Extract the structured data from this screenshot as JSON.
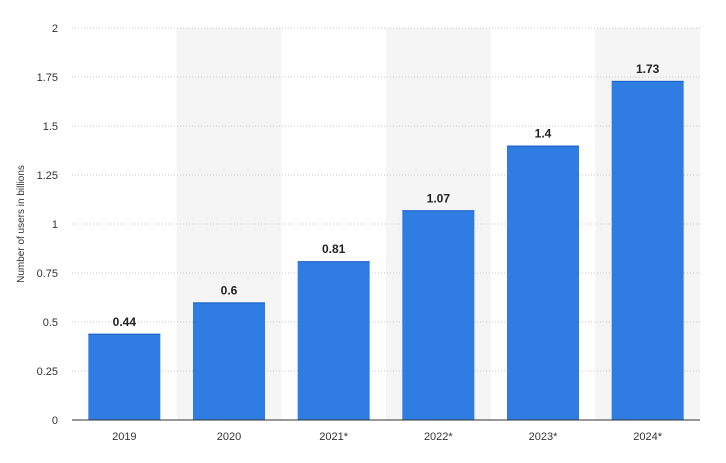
{
  "chart_data": {
    "type": "bar",
    "categories": [
      "2019",
      "2020",
      "2021*",
      "2022*",
      "2023*",
      "2024*"
    ],
    "values": [
      0.44,
      0.6,
      0.81,
      1.07,
      1.4,
      1.73
    ],
    "data_labels": [
      "0.44",
      "0.6",
      "0.81",
      "1.07",
      "1.4",
      "1.73"
    ],
    "title": "",
    "xlabel": "",
    "ylabel": "Number of users in billions",
    "ylim": [
      0,
      2
    ],
    "yticks": [
      0,
      0.25,
      0.5,
      0.75,
      1,
      1.25,
      1.5,
      1.75,
      2
    ],
    "ytick_labels": [
      "0",
      "0.25",
      "0.5",
      "0.75",
      "1",
      "1.25",
      "1.5",
      "1.75",
      "2"
    ],
    "grid": true,
    "grid_style": "dotted",
    "alternating_band_color": "#f5f5f5",
    "bar_color": "#2f7ce3",
    "bar_edge_color": "#1b5fc7",
    "legend": "none"
  }
}
